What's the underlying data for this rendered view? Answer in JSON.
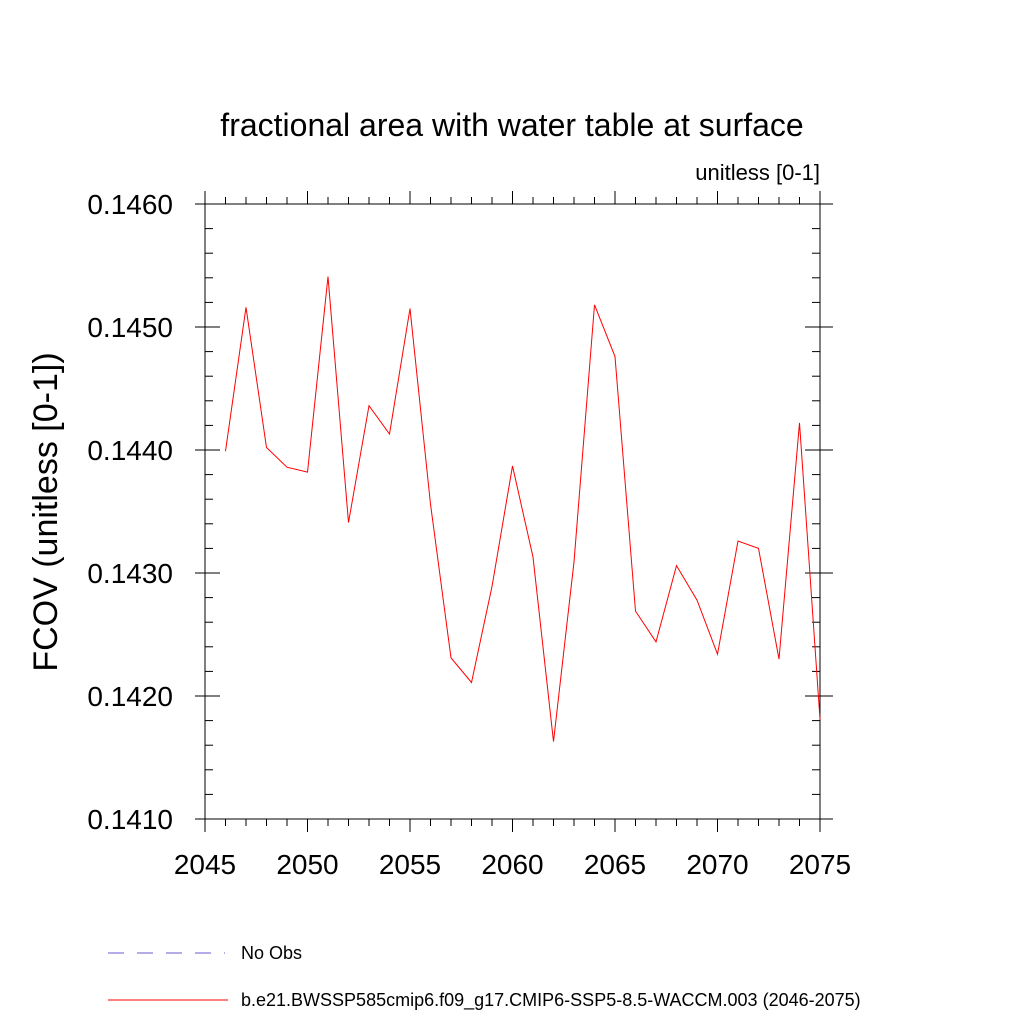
{
  "chart_data": {
    "type": "line",
    "title": "fractional area with water table at surface",
    "subtitle": "unitless [0-1]",
    "xlabel": "",
    "ylabel": "FCOV  (unitless [0-1])",
    "xlim": [
      2045,
      2075
    ],
    "ylim": [
      0.141,
      0.146
    ],
    "xticks": [
      "2045",
      "2050",
      "2055",
      "2060",
      "2065",
      "2070",
      "2075"
    ],
    "yticks": [
      "0.1410",
      "0.1420",
      "0.1430",
      "0.1440",
      "0.1450",
      "0.1460"
    ],
    "grid": false,
    "legend_position": "bottom",
    "series": [
      {
        "name": "b.e21.BWSSP585cmip6.f09_g17.CMIP6-SSP5-8.5-WACCM.003 (2046-2075)",
        "color": "#ff0000",
        "style": "solid",
        "x": [
          2046,
          2047,
          2048,
          2049,
          2050,
          2051,
          2052,
          2053,
          2054,
          2055,
          2056,
          2057,
          2058,
          2059,
          2060,
          2061,
          2062,
          2063,
          2064,
          2065,
          2066,
          2067,
          2068,
          2069,
          2070,
          2071,
          2072,
          2073,
          2074,
          2075
        ],
        "values": [
          0.14399,
          0.14516,
          0.14402,
          0.14386,
          0.14382,
          0.14541,
          0.14341,
          0.14436,
          0.14413,
          0.14515,
          0.14356,
          0.14231,
          0.14211,
          0.14289,
          0.14387,
          0.14313,
          0.14163,
          0.14309,
          0.14518,
          0.14476,
          0.14269,
          0.14244,
          0.14306,
          0.14278,
          0.14234,
          0.14326,
          0.1432,
          0.1423,
          0.14422,
          0.14181
        ]
      },
      {
        "name": "No Obs",
        "color": "#6a5acd",
        "style": "dashed",
        "x": [],
        "values": []
      }
    ]
  }
}
